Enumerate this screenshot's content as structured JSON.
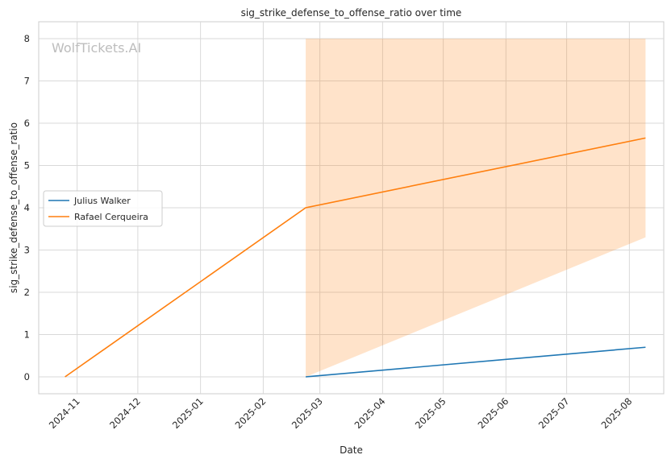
{
  "chart_data": {
    "type": "line",
    "title": "sig_strike_defense_to_offense_ratio over time",
    "xlabel": "Date",
    "ylabel": "sig_strike_defense_to_offense_ratio",
    "watermark": "WolfTickets.AI",
    "grid": true,
    "legend_position": "center-left",
    "ylim": [
      -0.4,
      8.4
    ],
    "xlim": [
      "2024-10-13",
      "2025-08-18"
    ],
    "x_ticks": [
      "2024-11",
      "2024-12",
      "2025-01",
      "2025-02",
      "2025-03",
      "2025-04",
      "2025-05",
      "2025-06",
      "2025-07",
      "2025-08"
    ],
    "x_tick_dates": [
      "2024-11-01",
      "2024-12-01",
      "2025-01-01",
      "2025-02-01",
      "2025-03-01",
      "2025-04-01",
      "2025-05-01",
      "2025-06-01",
      "2025-07-01",
      "2025-08-01"
    ],
    "y_ticks": [
      "0",
      "1",
      "2",
      "3",
      "4",
      "5",
      "6",
      "7",
      "8"
    ],
    "series": [
      {
        "name": "Julius Walker",
        "color": "#1f77b4",
        "x": [
          "2025-02-22",
          "2025-08-09"
        ],
        "y": [
          0.0,
          0.7
        ]
      },
      {
        "name": "Rafael Cerqueira",
        "color": "#ff7f0e",
        "x": [
          "2024-10-26",
          "2025-02-22",
          "2025-08-09"
        ],
        "y": [
          0.0,
          4.0,
          5.65
        ],
        "band": {
          "x": [
            "2025-02-22",
            "2025-08-09"
          ],
          "lower": [
            0.0,
            3.3
          ],
          "upper": [
            8.0,
            8.0
          ]
        }
      }
    ]
  }
}
